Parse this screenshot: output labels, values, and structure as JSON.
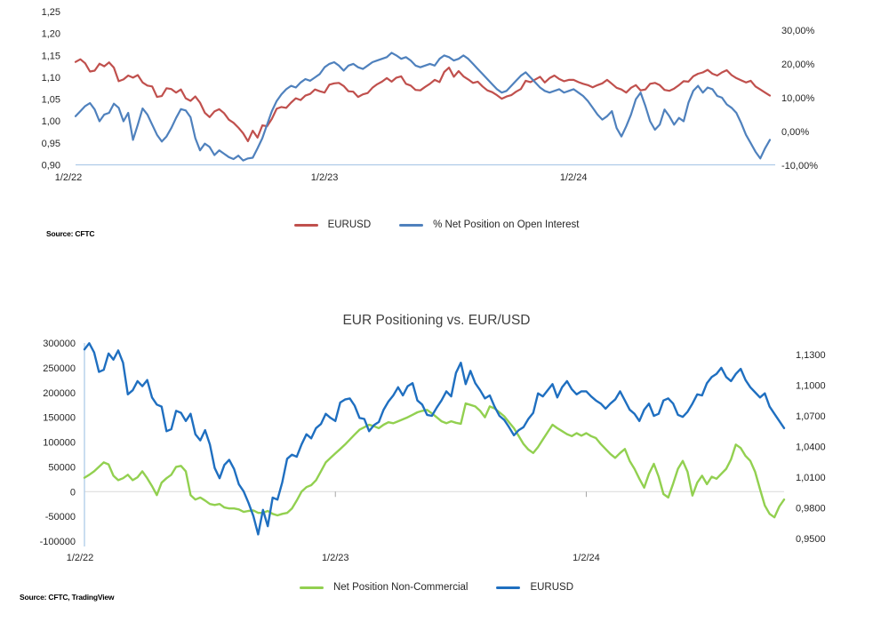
{
  "chart_data": [
    {
      "key": "top",
      "type": "line",
      "title": "",
      "source": "Source: CFTC",
      "axis_line_color": "#aecbe8",
      "zero_line_color": "#d9d9d9",
      "x_ticks": [
        {
          "label": "1/2/22",
          "index": 0
        },
        {
          "label": "1/2/23",
          "index": 52
        },
        {
          "label": "1/2/24",
          "index": 104
        }
      ],
      "axes": {
        "left": {
          "min": 0.9,
          "max": 1.25,
          "ticks": [
            {
              "label": "1,25",
              "value": 1.25
            },
            {
              "label": "1,20",
              "value": 1.2
            },
            {
              "label": "1,15",
              "value": 1.15
            },
            {
              "label": "1,10",
              "value": 1.1
            },
            {
              "label": "1,05",
              "value": 1.05
            },
            {
              "label": "1,00",
              "value": 1.0
            },
            {
              "label": "0,95",
              "value": 0.95
            },
            {
              "label": "0,90",
              "value": 0.9
            }
          ]
        },
        "right": {
          "min": -9.9,
          "max": 35.5,
          "ticks": [
            {
              "label": "30,00%",
              "value": 30
            },
            {
              "label": "20,00%",
              "value": 20
            },
            {
              "label": "10,00%",
              "value": 10
            },
            {
              "label": "0,00%",
              "value": 0
            },
            {
              "label": "-10,00%",
              "value": -10
            }
          ]
        }
      },
      "legend": [
        {
          "label": "EURUSD",
          "color": "#c0504d"
        },
        {
          "label": "% Net Position on Open Interest",
          "color": "#4f81bd"
        }
      ],
      "series": [
        {
          "id": "eurusd",
          "name": "EURUSD",
          "axis": "left",
          "color": "#c0504d",
          "width": 2.2,
          "values": [
            1.135,
            1.141,
            1.132,
            1.113,
            1.115,
            1.131,
            1.125,
            1.134,
            1.122,
            1.091,
            1.095,
            1.104,
            1.099,
            1.105,
            1.088,
            1.081,
            1.079,
            1.055,
            1.057,
            1.075,
            1.073,
            1.065,
            1.072,
            1.052,
            1.046,
            1.056,
            1.042,
            1.019,
            1.009,
            1.022,
            1.027,
            1.018,
            1.003,
            0.996,
            0.985,
            0.972,
            0.954,
            0.978,
            0.962,
            0.99,
            0.988,
            1.005,
            1.028,
            1.032,
            1.03,
            1.042,
            1.052,
            1.048,
            1.058,
            1.062,
            1.072,
            1.068,
            1.065,
            1.083,
            1.086,
            1.087,
            1.08,
            1.068,
            1.067,
            1.055,
            1.061,
            1.064,
            1.076,
            1.084,
            1.09,
            1.098,
            1.09,
            1.099,
            1.102,
            1.085,
            1.081,
            1.071,
            1.07,
            1.078,
            1.085,
            1.094,
            1.089,
            1.112,
            1.122,
            1.101,
            1.114,
            1.102,
            1.095,
            1.087,
            1.09,
            1.079,
            1.07,
            1.066,
            1.059,
            1.051,
            1.056,
            1.059,
            1.067,
            1.073,
            1.092,
            1.089,
            1.095,
            1.101,
            1.088,
            1.098,
            1.104,
            1.096,
            1.091,
            1.094,
            1.094,
            1.089,
            1.085,
            1.082,
            1.077,
            1.082,
            1.086,
            1.094,
            1.085,
            1.076,
            1.072,
            1.065,
            1.076,
            1.082,
            1.07,
            1.072,
            1.085,
            1.087,
            1.082,
            1.071,
            1.069,
            1.074,
            1.082,
            1.091,
            1.09,
            1.102,
            1.108,
            1.111,
            1.117,
            1.108,
            1.104,
            1.111,
            1.116,
            1.105,
            1.098,
            1.093,
            1.088,
            1.092,
            1.079,
            1.072,
            1.065,
            1.058
          ]
        },
        {
          "id": "pct-net-open-interest",
          "name": "% Net Position on Open Interest",
          "axis": "right",
          "color": "#4f81bd",
          "width": 2.2,
          "values": [
            4.5,
            6.0,
            7.5,
            8.4,
            6.5,
            3.0,
            5.0,
            5.5,
            8.2,
            7.0,
            3.0,
            5.5,
            -2.5,
            2.0,
            6.8,
            5.0,
            2.0,
            -1.0,
            -3.0,
            -1.5,
            1.0,
            4.0,
            6.6,
            6.2,
            4.2,
            -2.0,
            -5.6,
            -3.6,
            -4.6,
            -7.0,
            -5.6,
            -6.6,
            -7.6,
            -8.2,
            -7.2,
            -8.6,
            -8.0,
            -7.8,
            -5.0,
            -2.0,
            2.0,
            6.0,
            9.0,
            11.0,
            12.5,
            13.5,
            13.0,
            14.5,
            15.5,
            15.0,
            16.0,
            17.0,
            19.0,
            20.0,
            20.5,
            19.5,
            18.0,
            19.5,
            20.0,
            19.0,
            18.5,
            19.5,
            20.5,
            21.0,
            21.5,
            22.0,
            23.3,
            22.5,
            21.5,
            22.0,
            21.0,
            19.5,
            19.0,
            19.5,
            20.0,
            19.5,
            21.5,
            22.5,
            22.0,
            21.0,
            21.5,
            22.5,
            21.5,
            20.0,
            18.5,
            17.0,
            15.5,
            14.0,
            12.5,
            11.5,
            12.0,
            13.5,
            15.0,
            16.5,
            17.5,
            16.0,
            14.5,
            13.0,
            12.0,
            11.5,
            12.0,
            12.5,
            11.5,
            12.0,
            12.5,
            11.5,
            10.5,
            9.0,
            7.0,
            5.0,
            3.5,
            4.5,
            6.0,
            1.0,
            -1.5,
            1.5,
            5.0,
            9.5,
            11.5,
            7.5,
            3.0,
            0.5,
            2.0,
            6.5,
            4.5,
            2.0,
            4.0,
            3.0,
            8.5,
            12.0,
            13.5,
            11.5,
            13.0,
            12.5,
            10.5,
            10.0,
            8.0,
            7.0,
            5.5,
            2.5,
            -1.0,
            -3.5,
            -6.0,
            -8.0,
            -5.0,
            -2.5
          ]
        }
      ]
    },
    {
      "key": "bottom",
      "type": "line",
      "title": "EUR Positioning vs. EUR/USD",
      "source": "Source: CFTC, TradingView",
      "axis_line_color": "#aecbe8",
      "zero_line_color": "#d9d9d9",
      "x_ticks": [
        {
          "label": "1/2/22",
          "index": 0
        },
        {
          "label": "1/2/23",
          "index": 52
        },
        {
          "label": "1/2/24",
          "index": 104
        }
      ],
      "axes": {
        "left": {
          "min": -100000,
          "max": 300000,
          "ticks": [
            {
              "label": "300000",
              "value": 300000
            },
            {
              "label": "250000",
              "value": 250000
            },
            {
              "label": "200000",
              "value": 200000
            },
            {
              "label": "150000",
              "value": 150000
            },
            {
              "label": "100000",
              "value": 100000
            },
            {
              "label": "50000",
              "value": 50000
            },
            {
              "label": "0",
              "value": 0
            },
            {
              "label": "-50000",
              "value": -50000
            },
            {
              "label": "-100000",
              "value": -100000
            }
          ]
        },
        "right": {
          "min": 0.9474,
          "max": 1.1413,
          "ticks": [
            {
              "label": "1,1300",
              "value": 1.13
            },
            {
              "label": "1,1000",
              "value": 1.1
            },
            {
              "label": "1,0700",
              "value": 1.07
            },
            {
              "label": "1,0400",
              "value": 1.04
            },
            {
              "label": "1,0100",
              "value": 1.01
            },
            {
              "label": "0,9800",
              "value": 0.98
            },
            {
              "label": "0,9500",
              "value": 0.95
            }
          ]
        }
      },
      "legend": [
        {
          "label": "Net Position Non-Commercial",
          "color": "#92d050"
        },
        {
          "label": "EURUSD",
          "color": "#1f6fc0"
        }
      ],
      "series": [
        {
          "id": "net-position-noncommercial",
          "name": "Net Position Non-Commercial",
          "axis": "left",
          "color": "#92d050",
          "width": 2.4,
          "values": [
            28000,
            34000,
            41000,
            50000,
            59000,
            55000,
            32000,
            23000,
            27000,
            34000,
            23000,
            29000,
            41000,
            27000,
            11000,
            -7000,
            18000,
            27000,
            34000,
            50000,
            52000,
            41000,
            -7000,
            -16000,
            -12000,
            -18000,
            -25000,
            -27000,
            -25000,
            -32000,
            -34000,
            -34000,
            -36000,
            -41000,
            -39000,
            -38000,
            -43000,
            -43000,
            -39000,
            -45000,
            -48000,
            -45000,
            -43000,
            -34000,
            -18000,
            0,
            9000,
            13000,
            23000,
            41000,
            59000,
            68000,
            77000,
            86000,
            95000,
            105000,
            115000,
            125000,
            130000,
            135000,
            132000,
            128000,
            135000,
            140000,
            138000,
            142000,
            146000,
            150000,
            155000,
            160000,
            163000,
            165000,
            158000,
            150000,
            142000,
            138000,
            142000,
            139000,
            137000,
            178000,
            175000,
            172000,
            163000,
            150000,
            172000,
            168000,
            160000,
            152000,
            140000,
            128000,
            112000,
            96000,
            85000,
            78000,
            90000,
            105000,
            120000,
            135000,
            128000,
            122000,
            116000,
            112000,
            118000,
            113000,
            118000,
            112000,
            108000,
            96000,
            86000,
            76000,
            68000,
            78000,
            86000,
            62000,
            46000,
            26000,
            8000,
            36000,
            56000,
            30000,
            -5000,
            -12000,
            16000,
            46000,
            62000,
            40000,
            -8000,
            18000,
            32000,
            15000,
            30000,
            26000,
            36000,
            46000,
            65000,
            95000,
            88000,
            72000,
            62000,
            40000,
            5000,
            -28000,
            -45000,
            -52000,
            -30000,
            -16000
          ]
        },
        {
          "id": "eurusd",
          "name": "EURUSD",
          "axis": "right",
          "color": "#1f6fc0",
          "width": 2.4,
          "values": [
            1.135,
            1.141,
            1.132,
            1.113,
            1.115,
            1.131,
            1.125,
            1.134,
            1.122,
            1.091,
            1.095,
            1.104,
            1.099,
            1.105,
            1.088,
            1.081,
            1.079,
            1.055,
            1.057,
            1.075,
            1.073,
            1.065,
            1.072,
            1.052,
            1.046,
            1.056,
            1.042,
            1.019,
            1.009,
            1.022,
            1.027,
            1.018,
            1.003,
            0.996,
            0.985,
            0.972,
            0.954,
            0.978,
            0.962,
            0.99,
            0.988,
            1.005,
            1.028,
            1.032,
            1.03,
            1.042,
            1.052,
            1.048,
            1.058,
            1.062,
            1.072,
            1.068,
            1.065,
            1.083,
            1.086,
            1.087,
            1.08,
            1.068,
            1.067,
            1.055,
            1.061,
            1.064,
            1.076,
            1.084,
            1.09,
            1.098,
            1.09,
            1.099,
            1.102,
            1.085,
            1.081,
            1.071,
            1.07,
            1.078,
            1.085,
            1.094,
            1.089,
            1.112,
            1.122,
            1.101,
            1.114,
            1.102,
            1.095,
            1.087,
            1.09,
            1.079,
            1.07,
            1.066,
            1.059,
            1.051,
            1.056,
            1.059,
            1.067,
            1.073,
            1.092,
            1.089,
            1.095,
            1.101,
            1.088,
            1.098,
            1.104,
            1.096,
            1.091,
            1.094,
            1.094,
            1.089,
            1.085,
            1.082,
            1.077,
            1.082,
            1.086,
            1.094,
            1.085,
            1.076,
            1.072,
            1.065,
            1.076,
            1.082,
            1.07,
            1.072,
            1.085,
            1.087,
            1.082,
            1.071,
            1.069,
            1.074,
            1.082,
            1.091,
            1.09,
            1.102,
            1.108,
            1.111,
            1.117,
            1.108,
            1.104,
            1.111,
            1.116,
            1.105,
            1.098,
            1.093,
            1.088,
            1.092,
            1.079,
            1.072,
            1.065,
            1.058
          ]
        }
      ]
    }
  ]
}
